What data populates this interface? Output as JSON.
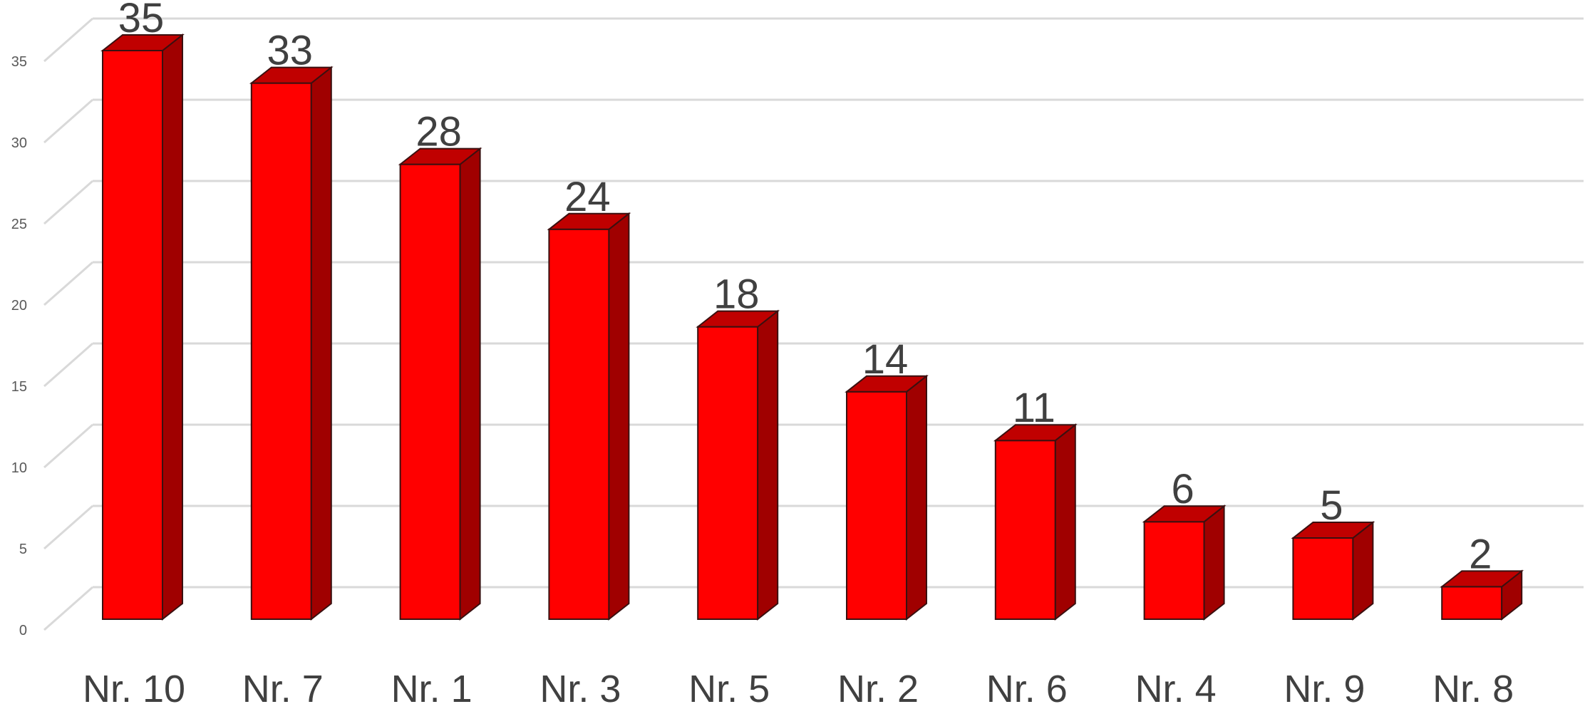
{
  "colors": {
    "bar_front": "#ff0000",
    "bar_top": "#c00000",
    "bar_side": "#a00000",
    "bar_outline": "#3a1010",
    "gridline": "#d9d9d9",
    "text": "#404040",
    "tick_text": "#595959"
  },
  "chart_data": {
    "type": "bar",
    "style": "3d-column",
    "categories": [
      "Nr. 10",
      "Nr. 7",
      "Nr. 1",
      "Nr. 3",
      "Nr. 5",
      "Nr. 2",
      "Nr. 6",
      "Nr. 4",
      "Nr. 9",
      "Nr. 8"
    ],
    "values": [
      35,
      33,
      28,
      24,
      18,
      14,
      11,
      6,
      5,
      2
    ],
    "title": "",
    "xlabel": "",
    "ylabel": "",
    "ylim": [
      0,
      35
    ],
    "yticks": [
      "0",
      "5",
      "10",
      "15",
      "20",
      "25",
      "30",
      "35"
    ],
    "grid": true,
    "legend": "none",
    "data_labels": true
  }
}
